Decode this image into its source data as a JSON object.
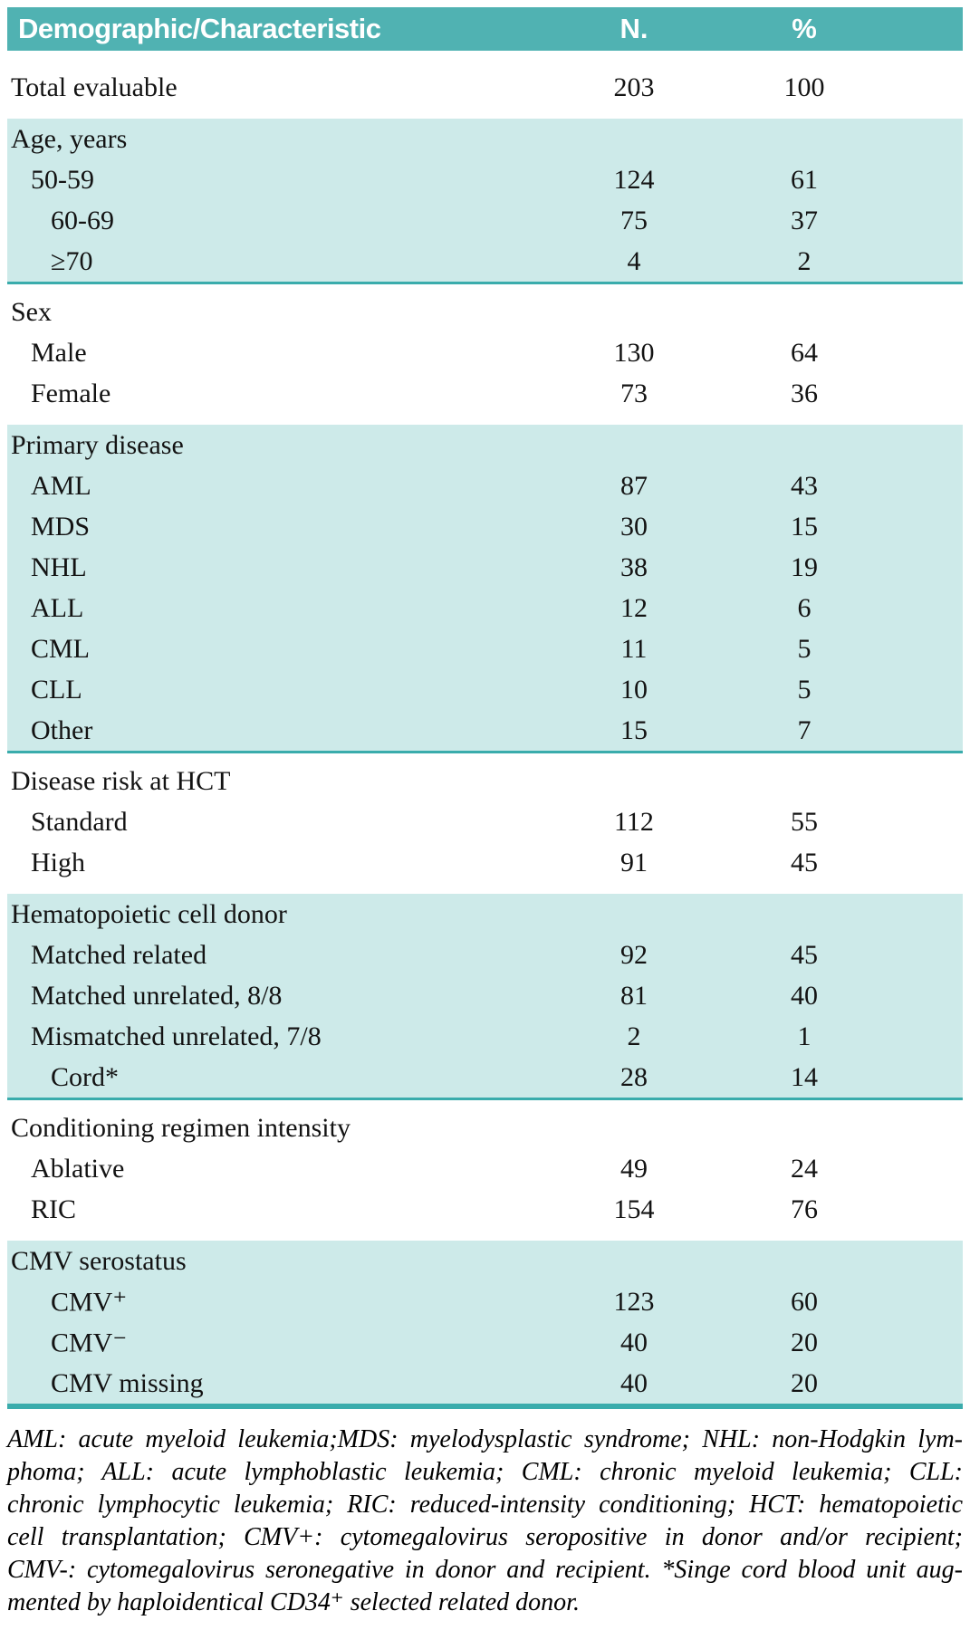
{
  "colors": {
    "header_bg": "#50b2b2",
    "band_bg": "#cdeae9",
    "divider": "#3aacac",
    "header_text": "#ffffff",
    "body_text": "#131313"
  },
  "table": {
    "columns": {
      "characteristic": "Demographic/Characteristic",
      "n": "N.",
      "pct": "%"
    },
    "sections": [
      {
        "shaded": false,
        "header": null,
        "rows": [
          {
            "label": "Total evaluable",
            "n": "203",
            "pct": "100",
            "level": 0
          }
        ]
      },
      {
        "shaded": true,
        "divider": "thin",
        "header": "Age, years",
        "rows": [
          {
            "label": "50-59",
            "n": "124",
            "pct": "61",
            "level": 1
          },
          {
            "label": "60-69",
            "n": "75",
            "pct": "37",
            "level": 2
          },
          {
            "label": "≥70",
            "n": "4",
            "pct": "2",
            "level": 2
          }
        ]
      },
      {
        "shaded": false,
        "header": "Sex",
        "rows": [
          {
            "label": "Male",
            "n": "130",
            "pct": "64",
            "level": 1
          },
          {
            "label": "Female",
            "n": "73",
            "pct": "36",
            "level": 1
          }
        ]
      },
      {
        "shaded": true,
        "divider": "thin",
        "header": "Primary disease",
        "rows": [
          {
            "label": "AML",
            "n": "87",
            "pct": "43",
            "level": 1
          },
          {
            "label": "MDS",
            "n": "30",
            "pct": "15",
            "level": 1
          },
          {
            "label": "NHL",
            "n": "38",
            "pct": "19",
            "level": 1
          },
          {
            "label": "ALL",
            "n": "12",
            "pct": "6",
            "level": 1
          },
          {
            "label": "CML",
            "n": "11",
            "pct": "5",
            "level": 1
          },
          {
            "label": "CLL",
            "n": "10",
            "pct": "5",
            "level": 1
          },
          {
            "label": "Other",
            "n": "15",
            "pct": "7",
            "level": 1
          }
        ]
      },
      {
        "shaded": false,
        "header": "Disease risk at HCT",
        "rows": [
          {
            "label": "Standard",
            "n": "112",
            "pct": "55",
            "level": 1
          },
          {
            "label": "High",
            "n": "91",
            "pct": "45",
            "level": 1
          }
        ]
      },
      {
        "shaded": true,
        "divider": "thin",
        "header": "Hematopoietic cell donor",
        "rows": [
          {
            "label": "Matched related",
            "n": "92",
            "pct": "45",
            "level": 1
          },
          {
            "label": "Matched unrelated, 8/8",
            "n": "81",
            "pct": "40",
            "level": 1
          },
          {
            "label": "Mismatched unrelated, 7/8",
            "n": "2",
            "pct": "1",
            "level": 1
          },
          {
            "label": "Cord*",
            "n": "28",
            "pct": "14",
            "level": 2
          }
        ]
      },
      {
        "shaded": false,
        "header": "Conditioning regimen intensity",
        "rows": [
          {
            "label": "Ablative",
            "n": "49",
            "pct": "24",
            "level": 1
          },
          {
            "label": "RIC",
            "n": "154",
            "pct": "76",
            "level": 1
          }
        ]
      },
      {
        "shaded": true,
        "divider": "thick",
        "header": "CMV serostatus",
        "rows": [
          {
            "label": "CMV⁺",
            "n": "123",
            "pct": "60",
            "level": 2
          },
          {
            "label": "CMV⁻",
            "n": "40",
            "pct": "20",
            "level": 2
          },
          {
            "label": "CMV missing",
            "n": "40",
            "pct": "20",
            "level": 2
          }
        ]
      }
    ],
    "footnote": {
      "lines": [
        "AML: acute myeloid leukemia;MDS: myelodysplastic syndrome; NHL: non-Hodgkin lym-",
        "phoma; ALL: acute lymphoblastic leukemia; CML: chronic myeloid leukemia; CLL:",
        "chronic lymphocytic leukemia; RIC: reduced-intensity conditioning; HCT: hematopoietic",
        "cell transplantation; CMV+: cytomegalovirus seropositive in donor and/or recipient;",
        "CMV-: cytomegalovirus seronegative in donor and recipient. *Singe cord blood unit aug-",
        "mented by haploidentical CD34⁺ selected related donor."
      ]
    }
  }
}
